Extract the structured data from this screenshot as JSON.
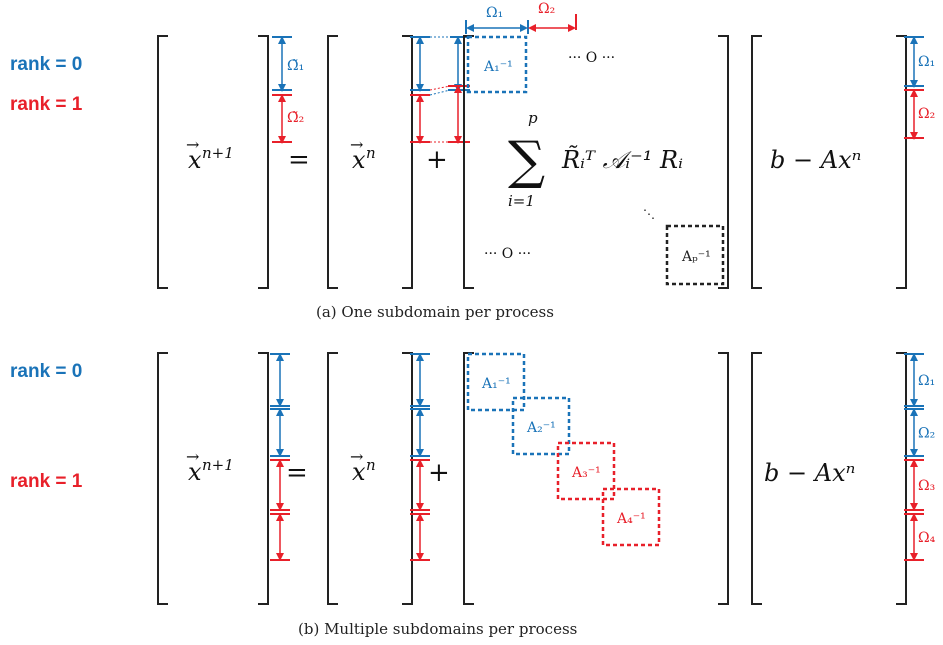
{
  "colors": {
    "blue": "#1a73b8",
    "red": "#e8202a",
    "black": "#222222"
  },
  "panel_a": {
    "rank0": "rank = 0",
    "rank1": "rank = 1",
    "lhs": "x",
    "lhs_sup": "n+1",
    "eq": "=",
    "x": "x",
    "x_sup": "n",
    "plus": "+",
    "omega1": "Ω₁",
    "omega2": "Ω₂",
    "omega_t1": "Ω̃₁",
    "omega_t2": "Ω̃₂",
    "dots_top": "···   O   ···",
    "dots_bottom": "···   O   ···",
    "sum_upper": "p",
    "sum_lower": "i=1",
    "sum_body": "R̃ᵢᵀ 𝒜ᵢ⁻¹ Rᵢ",
    "block_first": "A₁⁻¹",
    "block_last": "Aₚ⁻¹",
    "rhs": "b − Axⁿ",
    "rhs_omega1": "Ω₁",
    "rhs_omega2": "Ω₂",
    "caption": "(a) One subdomain per process"
  },
  "panel_b": {
    "rank0": "rank = 0",
    "rank1": "rank = 1",
    "lhs": "x",
    "lhs_sup": "n+1",
    "eq": "=",
    "x": "x",
    "x_sup": "n",
    "plus": "+",
    "blocks": [
      "A₁⁻¹",
      "A₂⁻¹",
      "A₃⁻¹",
      "A₄⁻¹"
    ],
    "rhs": "b − Axⁿ",
    "rhs_omegas": [
      "Ω₁",
      "Ω₂",
      "Ω₃",
      "Ω₄"
    ],
    "caption": "(b) Multiple subdomains per process"
  }
}
